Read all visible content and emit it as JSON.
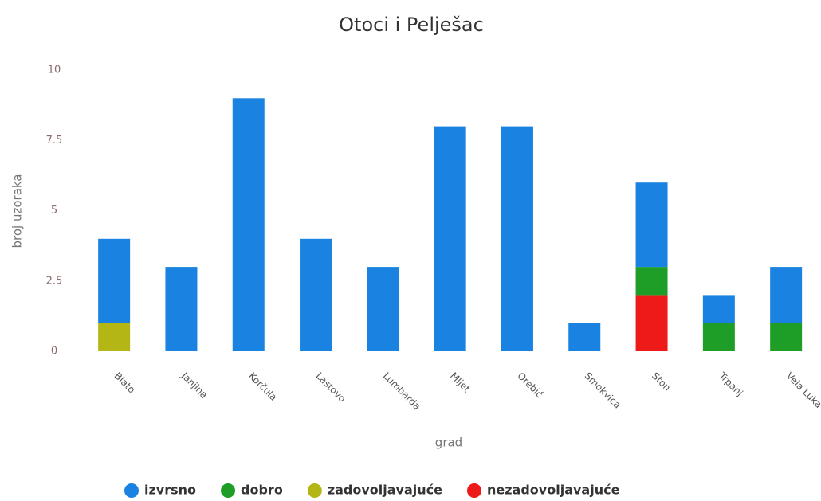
{
  "chart_data": {
    "type": "bar",
    "stacked": true,
    "title": "Otoci i Pelješac",
    "x_label": "grad",
    "y_label": "broj uzoraka",
    "categories": [
      "Blato",
      "Janjina",
      "Korčula",
      "Lastovo",
      "Lumbarda",
      "Mljet",
      "Orebić",
      "Smokvica",
      "Ston",
      "Trpanj",
      "Vela Luka"
    ],
    "series": [
      {
        "name": "izvrsno",
        "color": "#1a82e0",
        "values": [
          3,
          3,
          9,
          4,
          3,
          8,
          8,
          1,
          3,
          1,
          2
        ]
      },
      {
        "name": "dobro",
        "color": "#1e9e26",
        "values": [
          0,
          0,
          0,
          0,
          0,
          0,
          0,
          0,
          1,
          1,
          1
        ]
      },
      {
        "name": "zadovoljavajuće",
        "color": "#b3b614",
        "values": [
          1,
          0,
          0,
          0,
          0,
          0,
          0,
          0,
          0,
          0,
          0
        ]
      },
      {
        "name": "nezadovoljavajuće",
        "color": "#ee1a1a",
        "values": [
          0,
          0,
          0,
          0,
          0,
          0,
          0,
          0,
          2,
          0,
          0
        ]
      }
    ],
    "stack_order": [
      3,
      2,
      1,
      0
    ],
    "ylim": [
      0,
      10
    ],
    "yticks": [
      0,
      2.5,
      5,
      7.5,
      10
    ],
    "grid": false,
    "legend": "bottom"
  }
}
